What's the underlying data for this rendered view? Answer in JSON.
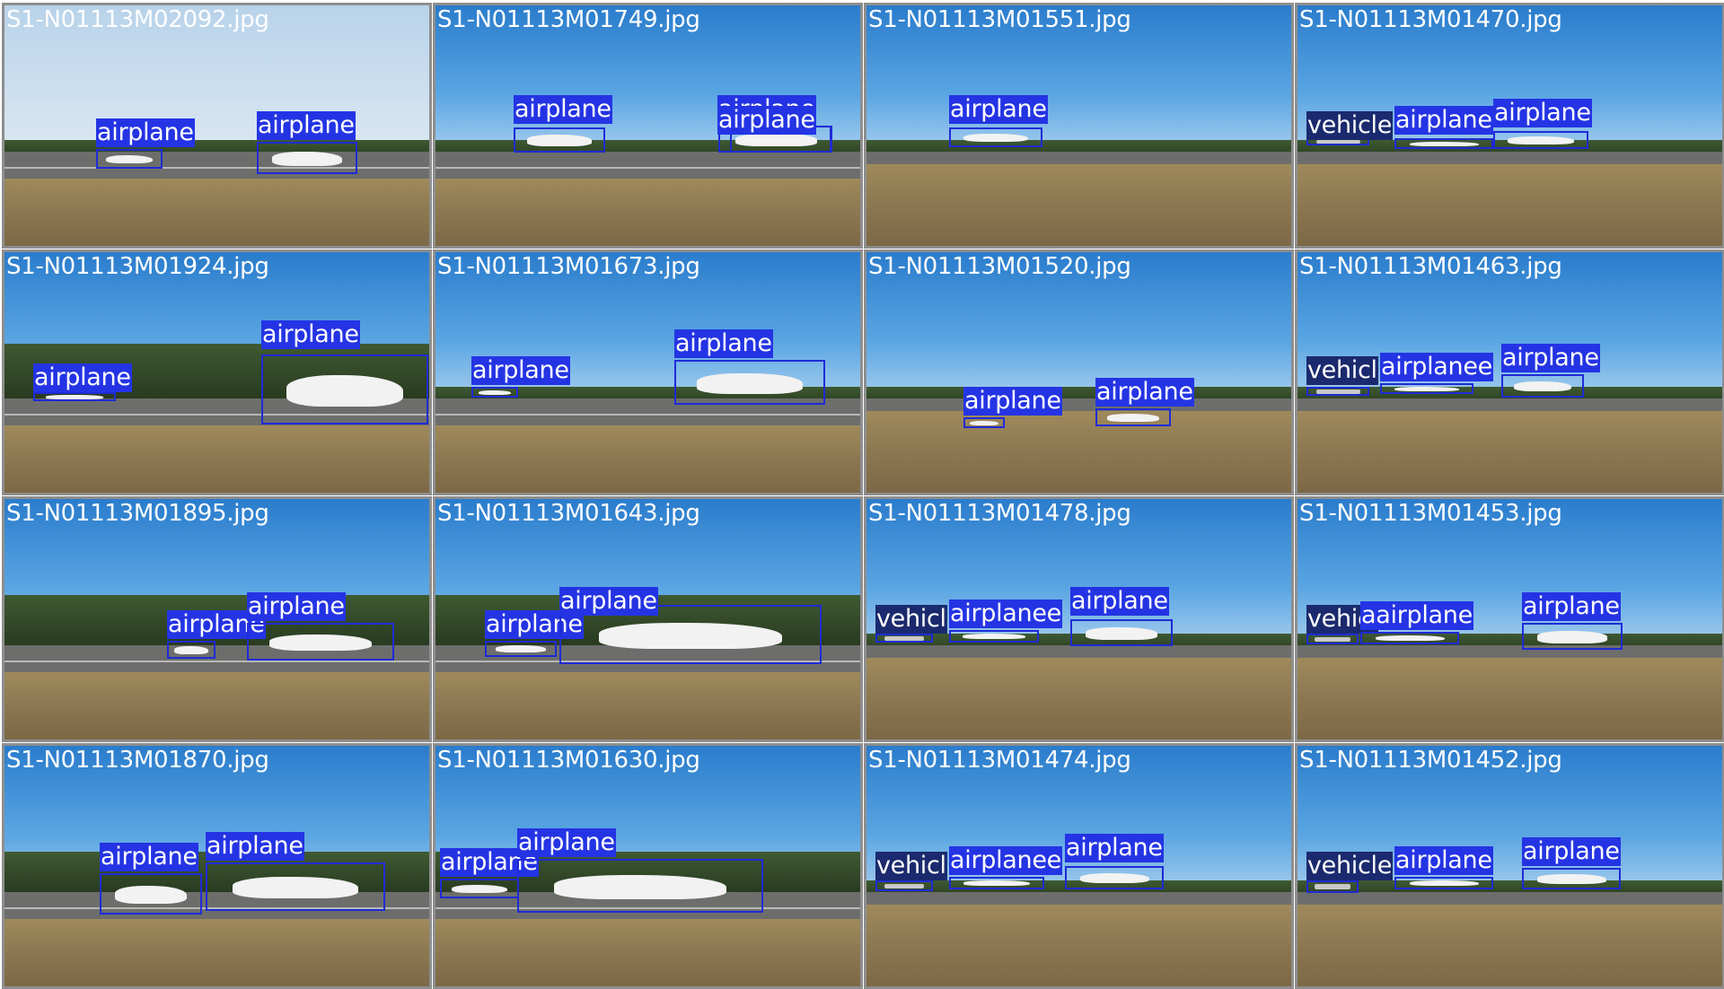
{
  "colors": {
    "airplane_box": "#1f2bd6",
    "airplane_label_bg": "#2434e4",
    "vehicle_label_bg": "#1b2a6e",
    "tile_border": "#8e8e8e",
    "label_text": "#ffffff"
  },
  "tiles": [
    {
      "filename": "S1-N01113M02092.jpg",
      "sky": "pale",
      "detections": [
        {
          "label": "airplane",
          "cls": "airplane"
        },
        {
          "label": "airplane",
          "cls": "airplane"
        }
      ]
    },
    {
      "filename": "S1-N01113M01749.jpg",
      "sky": "blue",
      "detections": [
        {
          "label": "airplane",
          "cls": "airplane"
        },
        {
          "label": "airplane",
          "cls": "airplane"
        },
        {
          "label": "airplane",
          "cls": "airplane"
        }
      ]
    },
    {
      "filename": "S1-N01113M01551.jpg",
      "sky": "blue",
      "detections": [
        {
          "label": "airplane",
          "cls": "airplane"
        }
      ]
    },
    {
      "filename": "S1-N01113M01470.jpg",
      "sky": "blue",
      "detections": [
        {
          "label": "vehicle",
          "cls": "vehicle"
        },
        {
          "label": "airplane",
          "cls": "airplane"
        },
        {
          "label": "airplane",
          "cls": "airplane"
        }
      ]
    },
    {
      "filename": "S1-N01113M01924.jpg",
      "sky": "blue",
      "detections": [
        {
          "label": "airplane",
          "cls": "airplane"
        },
        {
          "label": "airplane",
          "cls": "airplane"
        }
      ]
    },
    {
      "filename": "S1-N01113M01673.jpg",
      "sky": "blue",
      "detections": [
        {
          "label": "airplane",
          "cls": "airplane"
        },
        {
          "label": "airplane",
          "cls": "airplane"
        }
      ]
    },
    {
      "filename": "S1-N01113M01520.jpg",
      "sky": "blue",
      "detections": [
        {
          "label": "airplane",
          "cls": "airplane"
        },
        {
          "label": "airplane",
          "cls": "airplane"
        }
      ]
    },
    {
      "filename": "S1-N01113M01463.jpg",
      "sky": "blue",
      "detections": [
        {
          "label": "vehicl",
          "cls": "vehicle"
        },
        {
          "label": "airplanee",
          "cls": "airplane"
        },
        {
          "label": "airplane",
          "cls": "airplane"
        }
      ]
    },
    {
      "filename": "S1-N01113M01895.jpg",
      "sky": "blue",
      "detections": [
        {
          "label": "airplane",
          "cls": "airplane"
        },
        {
          "label": "airplane",
          "cls": "airplane"
        }
      ]
    },
    {
      "filename": "S1-N01113M01643.jpg",
      "sky": "blue",
      "detections": [
        {
          "label": "airplane",
          "cls": "airplane"
        },
        {
          "label": "airplane",
          "cls": "airplane"
        }
      ]
    },
    {
      "filename": "S1-N01113M01478.jpg",
      "sky": "blue",
      "detections": [
        {
          "label": "vehicl",
          "cls": "vehicle"
        },
        {
          "label": "airplanee",
          "cls": "airplane"
        },
        {
          "label": "airplane",
          "cls": "airplane"
        }
      ]
    },
    {
      "filename": "S1-N01113M01453.jpg",
      "sky": "blue",
      "detections": [
        {
          "label": "vehicl",
          "cls": "vehicle"
        },
        {
          "label": "aairplane",
          "cls": "airplane"
        },
        {
          "label": "airplane",
          "cls": "airplane"
        }
      ]
    },
    {
      "filename": "S1-N01113M01870.jpg",
      "sky": "blue",
      "detections": [
        {
          "label": "airplane",
          "cls": "airplane"
        },
        {
          "label": "airplane",
          "cls": "airplane"
        }
      ]
    },
    {
      "filename": "S1-N01113M01630.jpg",
      "sky": "blue",
      "detections": [
        {
          "label": "airplane",
          "cls": "airplane"
        },
        {
          "label": "airplane",
          "cls": "airplane"
        }
      ]
    },
    {
      "filename": "S1-N01113M01474.jpg",
      "sky": "blue",
      "detections": [
        {
          "label": "vehicl",
          "cls": "vehicle"
        },
        {
          "label": "airplanee",
          "cls": "airplane"
        },
        {
          "label": "airplane",
          "cls": "airplane"
        }
      ]
    },
    {
      "filename": "S1-N01113M01452.jpg",
      "sky": "blue",
      "detections": [
        {
          "label": "vehicle",
          "cls": "vehicle"
        },
        {
          "label": "airplane",
          "cls": "airplane"
        },
        {
          "label": "airplane",
          "cls": "airplane"
        }
      ]
    }
  ]
}
